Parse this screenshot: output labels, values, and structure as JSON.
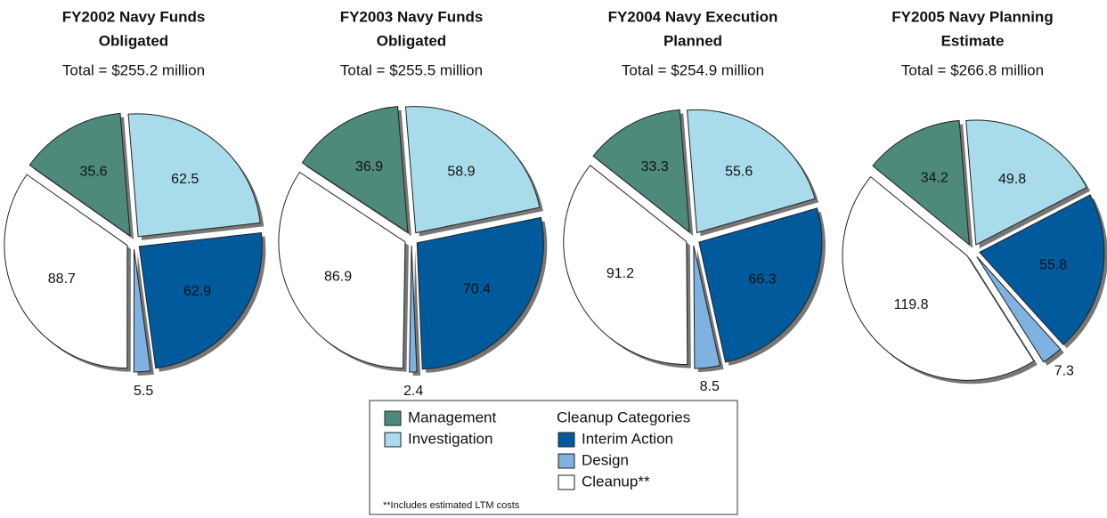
{
  "chart_data": [
    {
      "type": "pie",
      "title": [
        "FY2002 Navy Funds",
        "Obligated"
      ],
      "subtitle": "Total = $255.2 million",
      "values": [
        35.6,
        62.5,
        62.9,
        5.5,
        88.7
      ]
    },
    {
      "type": "pie",
      "title": [
        "FY2003 Navy Funds",
        "Obligated"
      ],
      "subtitle": "Total = $255.5 million",
      "values": [
        36.9,
        58.9,
        70.4,
        2.4,
        86.9
      ]
    },
    {
      "type": "pie",
      "title": [
        "FY2004 Navy Execution",
        "Planned"
      ],
      "subtitle": "Total = $254.9 million",
      "values": [
        33.3,
        55.6,
        66.3,
        8.5,
        91.2
      ]
    },
    {
      "type": "pie",
      "title": [
        "FY2005 Navy Planning",
        "Estimate"
      ],
      "subtitle": "Total = $266.8 million",
      "values": [
        34.2,
        49.8,
        55.8,
        7.3,
        119.8
      ]
    }
  ],
  "legend": {
    "title": "Cleanup Categories",
    "items": [
      {
        "name": "Management",
        "color": "#4e8a7c"
      },
      {
        "name": "Investigation",
        "color": "#a8dcea"
      },
      {
        "name": "Interim Action",
        "color": "#005a9c"
      },
      {
        "name": "Design",
        "color": "#7fb2e0"
      },
      {
        "name": "Cleanup**",
        "color": "#ffffff"
      }
    ],
    "note": "**Includes estimated LTM costs"
  }
}
